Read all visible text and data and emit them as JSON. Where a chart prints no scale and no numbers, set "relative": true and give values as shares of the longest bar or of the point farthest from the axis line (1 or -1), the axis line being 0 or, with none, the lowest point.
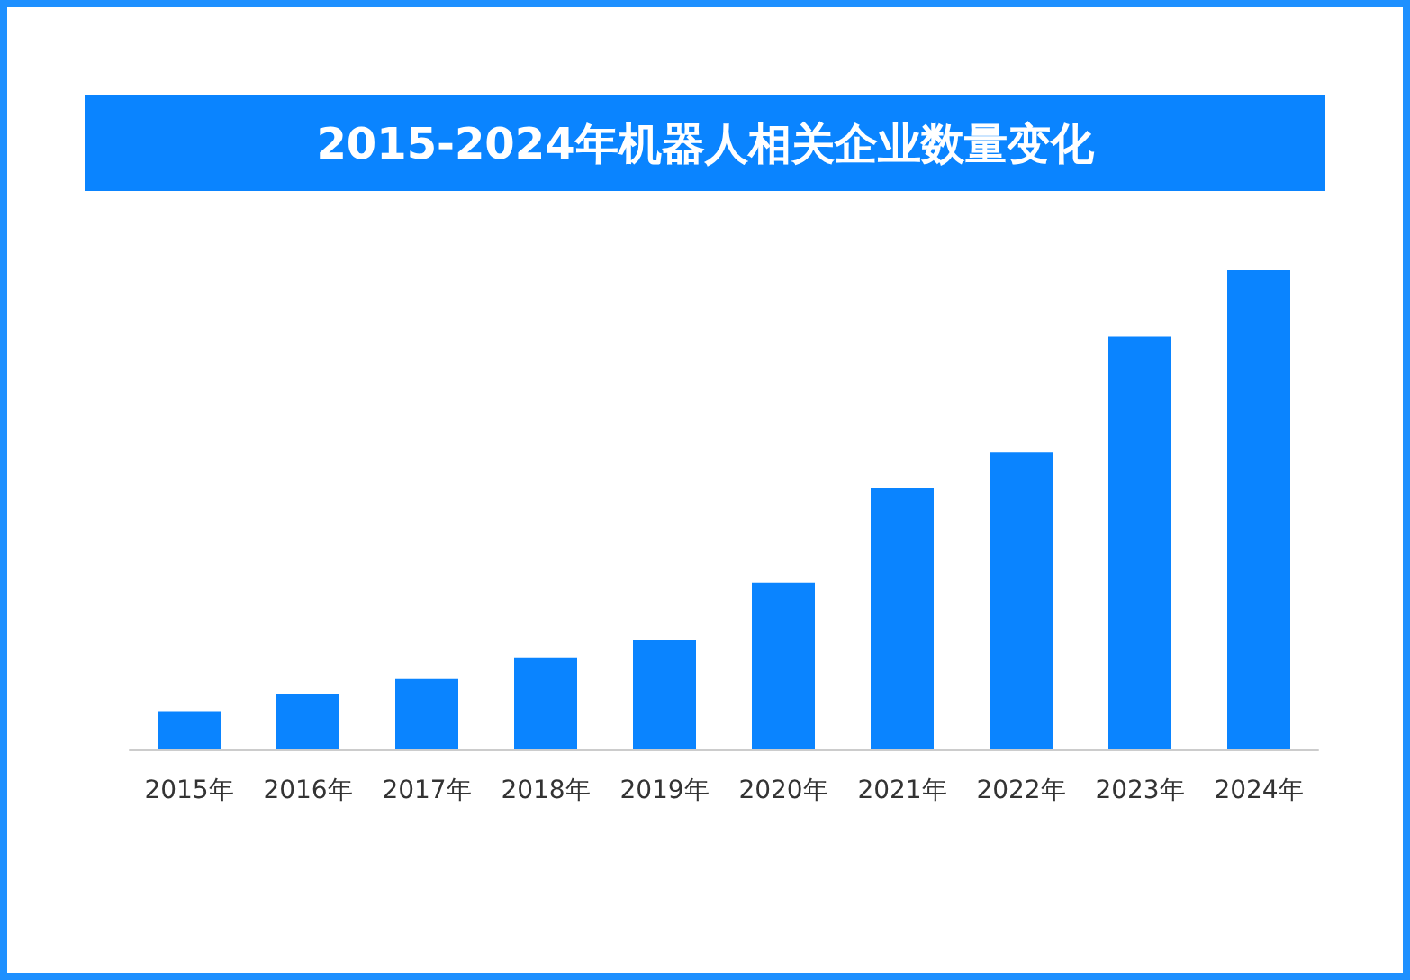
{
  "chart_data": {
    "type": "bar",
    "title": "2015-2024年机器人相关企业数量变化",
    "categories": [
      "2015年",
      "2016年",
      "2017年",
      "2018年",
      "2019年",
      "2020年",
      "2021年",
      "2022年",
      "2023年",
      "2024年"
    ],
    "values": [
      0.08,
      0.116,
      0.147,
      0.192,
      0.228,
      0.348,
      0.545,
      0.62,
      0.862,
      1
    ],
    "color": "#0a84ff",
    "relative": true
  }
}
